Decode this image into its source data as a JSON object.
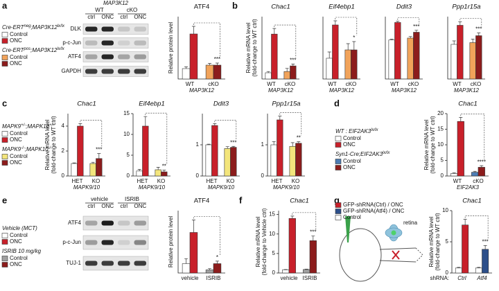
{
  "panel_labels": [
    "a",
    "b",
    "c",
    "d",
    "e",
    "f",
    "g"
  ],
  "blots": [
    {
      "header": "MAP3K12",
      "groups": [
        "WT",
        "cKO"
      ],
      "lanes": [
        "ctrl",
        "ONC",
        "ctrl",
        "ONC"
      ],
      "rows": [
        "DLK",
        "p-c-Jun",
        "ATF4",
        "GAPDH"
      ]
    },
    {
      "groups": [
        "vehicle",
        "ISRIB"
      ],
      "lanes": [
        "ctrl",
        "ONC",
        "ctrl",
        "ONC"
      ],
      "rows": [
        "ATF4",
        "p-c-Jun",
        "TUJ-1"
      ]
    }
  ],
  "legends": [
    {
      "groups": [
        {
          "header": [
            "Cre-ERT",
            "neg",
            ";MAP3K12",
            "lx/lx"
          ],
          "entries": [
            {
              "label": "Control",
              "color": "#ffffff"
            },
            {
              "label": "ONC",
              "color": "#c8202a"
            }
          ]
        },
        {
          "header": [
            "Cre-ERT",
            "pos",
            ";MAP3K12",
            "lx/lx"
          ],
          "entries": [
            {
              "label": "Control",
              "color": "#f1a35a"
            },
            {
              "label": "ONC",
              "color": "#8c1c1c"
            }
          ]
        }
      ]
    },
    {
      "groups": [
        {
          "header": [
            "MAPK9",
            "+/-",
            ";MAPK10",
            "+/-"
          ],
          "entries": [
            {
              "label": "Control",
              "color": "#ffffff"
            },
            {
              "label": "ONC",
              "color": "#c8202a"
            }
          ]
        },
        {
          "header": [
            "MAPK9",
            "-/-",
            ";MAPK10",
            "-/-"
          ],
          "entries": [
            {
              "label": "Control",
              "color": "#f3e57c"
            },
            {
              "label": "ONC",
              "color": "#8c1c1c"
            }
          ]
        }
      ]
    },
    {
      "groups": [
        {
          "header": [
            "WT : EIF2AK3",
            "lx/lx"
          ],
          "entries": [
            {
              "label": "Control",
              "color": "#ffffff"
            },
            {
              "label": "ONC",
              "color": "#c8202a"
            }
          ]
        },
        {
          "header": [
            "Syn1-Cre;EIF2AK3",
            "lx/lx"
          ],
          "entries": [
            {
              "label": "Control",
              "color": "#4d7db5"
            },
            {
              "label": "ONC",
              "color": "#8c1c1c"
            }
          ]
        }
      ]
    },
    {
      "groups": [
        {
          "header": [
            "Vehicle (MCT)"
          ],
          "entries": [
            {
              "label": "Control",
              "color": "#ffffff"
            },
            {
              "label": "ONC",
              "color": "#c8202a"
            }
          ]
        },
        {
          "header": [
            "ISRIB 10 mg/kg"
          ],
          "entries": [
            {
              "label": "Control",
              "color": "#a0a0a0"
            },
            {
              "label": "ONC",
              "color": "#8c1c1c"
            }
          ]
        }
      ]
    },
    {
      "groups": [
        {
          "entries": [
            {
              "label": "GFP-shRNA(Ctrl) / ONC",
              "color": "#c8202a"
            },
            {
              "label": "GFP-shRNA(Atf4) / ONC",
              "color": "#2c4f8a"
            },
            {
              "label": "Control",
              "color": "#ffffff"
            }
          ]
        }
      ]
    }
  ],
  "retina_label": "retina",
  "chart_data": [
    {
      "type": "bar",
      "title": "ATF4",
      "ylabel": [
        "Relative protein level"
      ],
      "categories": [
        "WT",
        "cKO"
      ],
      "xlabel": "MAP3K12",
      "ylim": [
        0,
        1.8
      ],
      "series": [
        {
          "colors": [
            "#ffffff",
            "#f1a35a"
          ],
          "values": [
            0.3,
            0.4
          ],
          "errors": [
            0.05,
            0.05
          ]
        },
        {
          "colors": [
            "#c8202a",
            "#8c1c1c"
          ],
          "values": [
            1.3,
            0.4
          ],
          "errors": [
            0.22,
            0.06
          ]
        }
      ],
      "significance": "***"
    },
    {
      "type": "bar",
      "title": "Chac1",
      "title_italic": true,
      "ylabel": [
        "Relative mRNA level",
        "(fold-change to WT ctrl)"
      ],
      "categories": [
        "WT",
        "cKO"
      ],
      "xlabel": "MAP3K12",
      "ylim": [
        0,
        10
      ],
      "series": [
        {
          "colors": [
            "#ffffff",
            "#f1a35a"
          ],
          "values": [
            1,
            1.2
          ],
          "errors": [
            0.2,
            0.5
          ]
        },
        {
          "colors": [
            "#c8202a",
            "#8c1c1c"
          ],
          "values": [
            7.2,
            2.1
          ],
          "errors": [
            0.9,
            0.3
          ]
        }
      ],
      "significance": "***"
    },
    {
      "type": "bar",
      "title": "Eif4ebp1",
      "title_italic": true,
      "categories": [
        "WT",
        "cKO"
      ],
      "xlabel": "MAP3K12",
      "ylim": [
        0,
        3
      ],
      "series": [
        {
          "colors": [
            "#ffffff",
            "#f1a35a"
          ],
          "values": [
            1,
            1.4
          ],
          "errors": [
            0.3,
            0.3
          ]
        },
        {
          "colors": [
            "#c8202a",
            "#8c1c1c"
          ],
          "values": [
            2.6,
            1.4
          ],
          "errors": [
            0.2,
            0.4
          ]
        }
      ],
      "significance": "*"
    },
    {
      "type": "bar",
      "title": "Ddit3",
      "title_italic": true,
      "categories": [
        "WT",
        "cKO"
      ],
      "xlabel": "MAP3K12",
      "ylim": [
        0,
        1.6
      ],
      "series": [
        {
          "colors": [
            "#ffffff",
            "#f1a35a"
          ],
          "values": [
            1,
            1.05
          ],
          "errors": [
            0.02,
            0.04
          ]
        },
        {
          "colors": [
            "#c8202a",
            "#8c1c1c"
          ],
          "values": [
            1.45,
            1.2
          ],
          "errors": [
            0.03,
            0.05
          ]
        }
      ],
      "significance": "***"
    },
    {
      "type": "bar",
      "title": "Ppp1r15a",
      "title_italic": true,
      "categories": [
        "WT",
        "cKO"
      ],
      "xlabel": "MAP3K12",
      "ylim": [
        0,
        1.8
      ],
      "series": [
        {
          "colors": [
            "#ffffff",
            "#f1a35a"
          ],
          "values": [
            1,
            1.05
          ],
          "errors": [
            0.1,
            0.1
          ]
        },
        {
          "colors": [
            "#c8202a",
            "#8c1c1c"
          ],
          "values": [
            1.55,
            1.25
          ],
          "errors": [
            0.1,
            0.08
          ]
        }
      ],
      "significance": "***",
      "significance_color": "#a0309a"
    },
    {
      "type": "bar",
      "title": "Chac1",
      "title_italic": true,
      "ylabel": [
        "Relative mRNA level",
        "(fold-change to WT ctrl)"
      ],
      "categories": [
        "HET",
        "KO"
      ],
      "xlabel": "MAPK9/10",
      "ylim": [
        0,
        5
      ],
      "yticks": [
        0,
        2,
        4
      ],
      "series": [
        {
          "colors": [
            "#ffffff",
            "#f3e57c"
          ],
          "values": [
            1,
            1
          ],
          "errors": [
            0.05,
            0.1
          ]
        },
        {
          "colors": [
            "#c8202a",
            "#8c1c1c"
          ],
          "values": [
            4,
            1.4
          ],
          "errors": [
            0.2,
            0.4
          ]
        }
      ],
      "significance": "***"
    },
    {
      "type": "bar",
      "title": "Eif4ebp1",
      "title_italic": true,
      "categories": [
        "HET",
        "KO"
      ],
      "xlabel": "MAPK9/10",
      "ylim": [
        0,
        15
      ],
      "yticks": [
        0,
        5,
        10,
        15
      ],
      "series": [
        {
          "colors": [
            "#ffffff",
            "#f3e57c"
          ],
          "values": [
            1.2,
            1.5
          ],
          "errors": [
            0.4,
            0.6
          ]
        },
        {
          "colors": [
            "#c8202a",
            "#8c1c1c"
          ],
          "values": [
            12,
            1
          ],
          "errors": [
            2.3,
            0.4
          ]
        }
      ],
      "significance": "**"
    },
    {
      "type": "bar",
      "title": "Ddit3",
      "title_italic": true,
      "categories": [
        "HET",
        "KO"
      ],
      "xlabel": "MAPK9/10",
      "ylim": [
        0,
        2
      ],
      "yticks": [
        0,
        1
      ],
      "series": [
        {
          "colors": [
            "#ffffff",
            "#f3e57c"
          ],
          "values": [
            1,
            0.88
          ],
          "errors": [
            0.02,
            0.06
          ]
        },
        {
          "colors": [
            "#c8202a",
            "#8c1c1c"
          ],
          "values": [
            1.62,
            0.92
          ],
          "errors": [
            0.06,
            0.03
          ]
        }
      ],
      "significance": "***"
    },
    {
      "type": "bar",
      "title": "Ppp1r15a",
      "title_italic": true,
      "categories": [
        "HET",
        "KO"
      ],
      "xlabel": "MAPK9/10",
      "ylim": [
        0,
        2
      ],
      "yticks": [
        0,
        1
      ],
      "series": [
        {
          "colors": [
            "#ffffff",
            "#f3e57c"
          ],
          "values": [
            1,
            0.95
          ],
          "errors": [
            0.1,
            0.12
          ]
        },
        {
          "colors": [
            "#c8202a",
            "#8c1c1c"
          ],
          "values": [
            1.8,
            1.05
          ],
          "errors": [
            0.12,
            0.05
          ]
        }
      ],
      "significance": "**"
    },
    {
      "type": "bar",
      "title": "Chac1",
      "title_italic": true,
      "ylabel": [
        "Relative mRNA level",
        "(fold-change to WT ctrl)"
      ],
      "categories": [
        "WT",
        "cKO"
      ],
      "xlabel": "EIF2AK3",
      "ylim": [
        0,
        20
      ],
      "yticks": [
        0,
        5,
        10,
        15,
        20
      ],
      "series": [
        {
          "colors": [
            "#ffffff",
            "#4d7db5"
          ],
          "values": [
            0.8,
            1.2
          ],
          "errors": [
            0.2,
            0.3
          ]
        },
        {
          "colors": [
            "#c8202a",
            "#8c1c1c"
          ],
          "values": [
            17.5,
            2.8
          ],
          "errors": [
            1.3,
            0.5
          ]
        }
      ],
      "significance": "****"
    },
    {
      "type": "bar",
      "title": "ATF4",
      "ylabel": [
        "Relative protein level"
      ],
      "categories": [
        "vehicle",
        "ISRIB"
      ],
      "ylim": [
        0,
        10
      ],
      "series": [
        {
          "colors": [
            "#ffffff",
            "#a0a0a0"
          ],
          "values": [
            1.5,
            0.5
          ],
          "errors": [
            0.8,
            0.2
          ]
        },
        {
          "colors": [
            "#c8202a",
            "#8c1c1c"
          ],
          "values": [
            6.5,
            1.5
          ],
          "errors": [
            2,
            0.4
          ]
        }
      ],
      "significance": "*"
    },
    {
      "type": "bar",
      "title": "Chac1",
      "title_italic": true,
      "ylabel": [
        "Relative mRNA level",
        "(fold-change to Vehicle ctrl)"
      ],
      "categories": [
        "vehicle",
        "ISRIB"
      ],
      "ylim": [
        0,
        16
      ],
      "yticks": [
        0,
        5,
        10,
        15
      ],
      "series": [
        {
          "colors": [
            "#ffffff",
            "#a0a0a0"
          ],
          "values": [
            0.8,
            0.9
          ],
          "errors": [
            0.1,
            0.1
          ]
        },
        {
          "colors": [
            "#c8202a",
            "#8c1c1c"
          ],
          "values": [
            14,
            8.3
          ],
          "errors": [
            0.6,
            1.2
          ]
        }
      ],
      "significance": "***"
    },
    {
      "type": "bar",
      "title": "Chac1",
      "title_italic": true,
      "ylabel": [
        "Relative mRNA level",
        "(fold-change to WT ctrl)"
      ],
      "categories": [
        "Ctrl",
        "Atf4"
      ],
      "xlabel": "shRNA:",
      "xlabel_left": true,
      "ylim": [
        0,
        10
      ],
      "yticks": [
        0,
        5,
        10
      ],
      "series": [
        {
          "colors": [
            "#ffffff",
            "#ffffff"
          ],
          "values": [
            0.8,
            0.8
          ],
          "errors": [
            0.1,
            0.1
          ]
        },
        {
          "colors": [
            "#c8202a",
            "#2c4f8a"
          ],
          "values": [
            7.7,
            3.8
          ],
          "errors": [
            0.9,
            0.6
          ]
        }
      ],
      "significance": "***"
    }
  ]
}
